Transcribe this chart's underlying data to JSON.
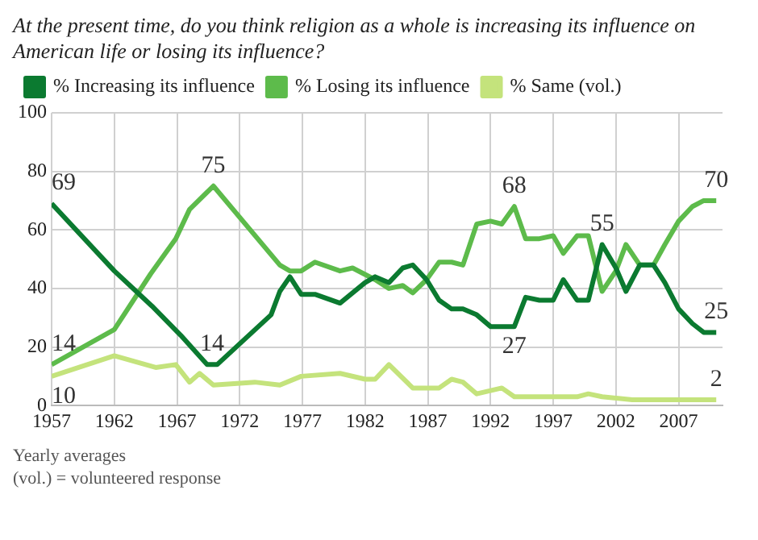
{
  "chart_data": {
    "type": "line",
    "title": "At the present time, do you think religion as a whole is increasing its influence on American life or losing its influence?",
    "xlim": [
      1957,
      2010.5
    ],
    "xticks": [
      1957,
      1962,
      1967,
      1972,
      1977,
      1982,
      1987,
      1992,
      1997,
      2002,
      2007
    ],
    "ylim": [
      0,
      100
    ],
    "yticks": [
      0,
      20,
      40,
      60,
      80,
      100
    ],
    "grid": true,
    "legend": "top",
    "marker": "none",
    "series": [
      {
        "name": "% Increasing its influence",
        "color": "#0b7a30",
        "x": [
          1957,
          1962,
          1965,
          1967.3,
          1969.4,
          1970.2,
          1974.5,
          1975.2,
          1976,
          1976.9,
          1978,
          1980,
          1982,
          1982.8,
          1983.9,
          1985,
          1985.8,
          1986.9,
          1987.9,
          1988.9,
          1989.8,
          1990.9,
          1992,
          1993.9,
          1994.8,
          1995.9,
          1997,
          1997.8,
          1998.9,
          1999.8,
          2000.9,
          2002,
          2002.8,
          2003.9,
          2005,
          2005.9,
          2007,
          2008.1,
          2009,
          2010
        ],
        "values": [
          69,
          46,
          34,
          24,
          14,
          14,
          31,
          39,
          44,
          38,
          38,
          35,
          42,
          44,
          42,
          47,
          48,
          43,
          36,
          33,
          33,
          31,
          27,
          27,
          37,
          36,
          36,
          43,
          36,
          36,
          55,
          47,
          39,
          48,
          48,
          42,
          33,
          28,
          25,
          25
        ]
      },
      {
        "name": "% Losing its influence",
        "color": "#5dbb4b",
        "x": [
          1957,
          1962,
          1964.9,
          1966.9,
          1968,
          1969.9,
          1975.2,
          1976,
          1976.9,
          1978,
          1980,
          1981,
          1982.8,
          1983.9,
          1985,
          1985.8,
          1986.9,
          1987.9,
          1988.9,
          1989.8,
          1990.9,
          1992,
          1992.9,
          1993.9,
          1994.8,
          1995.9,
          1997,
          1997.8,
          1998.9,
          1999.8,
          2000.9,
          2002,
          2002.8,
          2003.9,
          2005,
          2005.9,
          2007,
          2008.1,
          2009,
          2010
        ],
        "values": [
          14,
          26,
          45,
          57,
          67,
          75,
          48,
          46,
          46,
          49,
          46,
          47,
          43,
          40,
          41,
          38.5,
          43,
          49,
          49,
          48,
          62,
          63,
          62,
          68,
          57,
          57,
          58,
          52,
          58,
          58,
          39,
          46,
          55,
          48,
          48,
          55,
          63,
          68,
          70,
          70
        ]
      },
      {
        "name": "% Same (vol.)",
        "color": "#c4e37c",
        "x": [
          1957,
          1962,
          1965.3,
          1966.9,
          1968,
          1968.8,
          1969.9,
          1973.2,
          1975.2,
          1976.9,
          1980,
          1982,
          1982.8,
          1983.9,
          1985.8,
          1987.9,
          1988.9,
          1989.8,
          1990.9,
          1992.9,
          1993.9,
          1995.9,
          1998.9,
          1999.8,
          2000.9,
          2003.3,
          2010
        ],
        "values": [
          10,
          17,
          13,
          14,
          8,
          11,
          7,
          8,
          7,
          10,
          11,
          9,
          9,
          14,
          6,
          6,
          9,
          8,
          4,
          6,
          3,
          3,
          3,
          4,
          3,
          2,
          2
        ]
      }
    ],
    "annotations": [
      {
        "text": "69",
        "x": 1957,
        "y": 69
      },
      {
        "text": "14",
        "x": 1957,
        "y": 14
      },
      {
        "text": "10",
        "x": 1957,
        "y": 10
      },
      {
        "text": "75",
        "x": 1969.9,
        "y": 75
      },
      {
        "text": "14",
        "x": 1969.8,
        "y": 14
      },
      {
        "text": "68",
        "x": 1993.9,
        "y": 68
      },
      {
        "text": "27",
        "x": 1993.9,
        "y": 27
      },
      {
        "text": "55",
        "x": 2000.9,
        "y": 55
      },
      {
        "text": "70",
        "x": 2010,
        "y": 70
      },
      {
        "text": "25",
        "x": 2010,
        "y": 25
      },
      {
        "text": "2",
        "x": 2010,
        "y": 2
      },
      "Yearly averages",
      "(vol.) = volunteered response"
    ]
  }
}
